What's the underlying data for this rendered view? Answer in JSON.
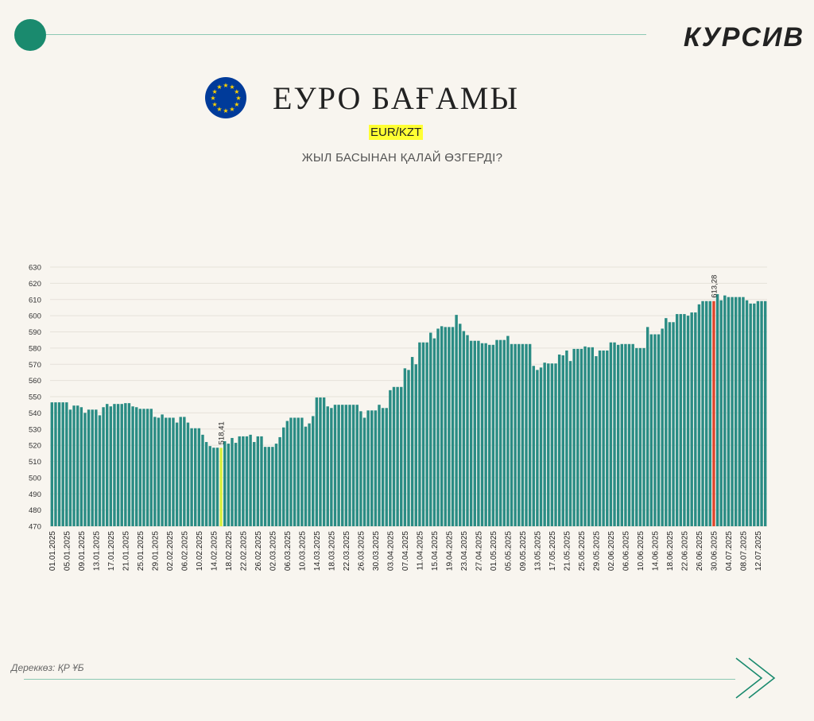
{
  "brand": "КУРСИВ",
  "header": {
    "title": "ЕУРО БАҒАМЫ",
    "pair": "EUR/KZT",
    "subtitle": "ЖЫЛ БАСЫНАН ҚАЛАЙ ӨЗГЕРДІ?"
  },
  "footer": {
    "source": "Дереккөз: ҚР ҰБ"
  },
  "icons": {
    "flag": "eu-flag-icon",
    "next": "chevron-right-icon"
  },
  "colors": {
    "bar": "#2a8c84",
    "low": "#d7ef3a",
    "high": "#e0452b",
    "accent": "#1a8a6e"
  },
  "chart_data": {
    "type": "bar",
    "ylim": [
      470,
      630
    ],
    "yticks": [
      470,
      480,
      490,
      500,
      510,
      520,
      530,
      540,
      550,
      560,
      570,
      580,
      590,
      600,
      610,
      620,
      630
    ],
    "grid": true,
    "xticks": [
      "01.01.2025",
      "05.01.2025",
      "09.01.2025",
      "13.01.2025",
      "17.01.2025",
      "21.01.2025",
      "25.01.2025",
      "29.01.2025",
      "02.02.2025",
      "06.02.2025",
      "10.02.2025",
      "14.02.2025",
      "18.02.2025",
      "22.02.2025",
      "26.02.2025",
      "02.03.2025",
      "06.03.2025",
      "10.03.2025",
      "14.03.2025",
      "18.03.2025",
      "22.03.2025",
      "26.03.2025",
      "30.03.2025",
      "03.04.2025",
      "07.04.2025",
      "11.04.2025",
      "15.04.2025",
      "19.04.2025",
      "23.04.2025",
      "27.04.2025",
      "01.05.2025",
      "05.05.2025",
      "09.05.2025",
      "13.05.2025",
      "17.05.2025",
      "21.05.2025",
      "25.05.2025",
      "29.05.2025",
      "02.06.2025",
      "06.06.2025",
      "10.06.2025",
      "14.06.2025",
      "18.06.2025",
      "22.06.2025",
      "26.06.2025",
      "30.06.2025",
      "04.07.2025",
      "08.07.2025",
      "12.07.2025"
    ],
    "values": [
      546.5,
      546.5,
      546.5,
      546.5,
      546.5,
      542.0,
      544.5,
      544.5,
      543.5,
      540.0,
      542.0,
      542.0,
      542.0,
      538.5,
      543.5,
      545.5,
      544.0,
      545.5,
      545.5,
      545.5,
      546.0,
      546.0,
      544.0,
      543.5,
      542.5,
      542.5,
      542.5,
      542.5,
      537.5,
      537.0,
      539.0,
      537.0,
      537.0,
      537.0,
      534.0,
      537.5,
      537.5,
      534.0,
      530.5,
      530.5,
      530.5,
      526.5,
      522.0,
      519.5,
      518.5,
      518.5,
      518.41,
      522.5,
      521.0,
      524.5,
      521.5,
      525.5,
      525.5,
      525.5,
      526.5,
      522.0,
      525.5,
      525.5,
      519.0,
      519.0,
      519.0,
      521.0,
      525.0,
      531.0,
      535.0,
      537.0,
      537.0,
      537.0,
      537.0,
      531.5,
      533.5,
      538.0,
      549.5,
      549.5,
      549.5,
      544.0,
      543.0,
      545.0,
      545.0,
      545.0,
      545.0,
      545.0,
      545.0,
      545.0,
      541.0,
      537.0,
      541.5,
      541.5,
      541.5,
      545.0,
      543.0,
      543.0,
      554.0,
      556.0,
      556.0,
      556.0,
      567.5,
      566.5,
      574.5,
      570.0,
      583.5,
      583.5,
      583.5,
      589.5,
      586.0,
      592.0,
      593.5,
      593.0,
      593.0,
      593.0,
      600.5,
      595.0,
      590.5,
      588.0,
      584.5,
      584.5,
      584.5,
      583.0,
      583.0,
      582.0,
      582.0,
      585.0,
      585.0,
      585.0,
      587.5,
      582.5,
      582.5,
      582.5,
      582.5,
      582.5,
      582.5,
      569.0,
      566.5,
      568.0,
      571.0,
      570.5,
      570.5,
      570.5,
      576.0,
      575.5,
      578.5,
      572.0,
      579.5,
      579.5,
      579.5,
      581.0,
      580.5,
      580.5,
      575.0,
      578.5,
      578.5,
      578.5,
      583.5,
      583.5,
      582.0,
      582.5,
      582.5,
      582.5,
      582.5,
      580.0,
      580.0,
      580.0,
      593.0,
      588.5,
      588.5,
      588.5,
      592.0,
      598.5,
      596.0,
      596.0,
      601.0,
      601.0,
      601.0,
      600.0,
      602.0,
      602.0,
      607.0,
      609.0,
      609.0,
      609.0,
      609.0,
      613.28,
      609.5,
      612.5,
      611.5,
      611.5,
      611.5,
      611.5,
      611.5,
      609.5,
      607.5,
      607.5,
      609.0,
      609.0,
      609.0
    ],
    "annotations": [
      {
        "label": "518,41",
        "index": 46,
        "kind": "low"
      },
      {
        "label": "613,28",
        "index": 180,
        "kind": "high"
      }
    ]
  }
}
